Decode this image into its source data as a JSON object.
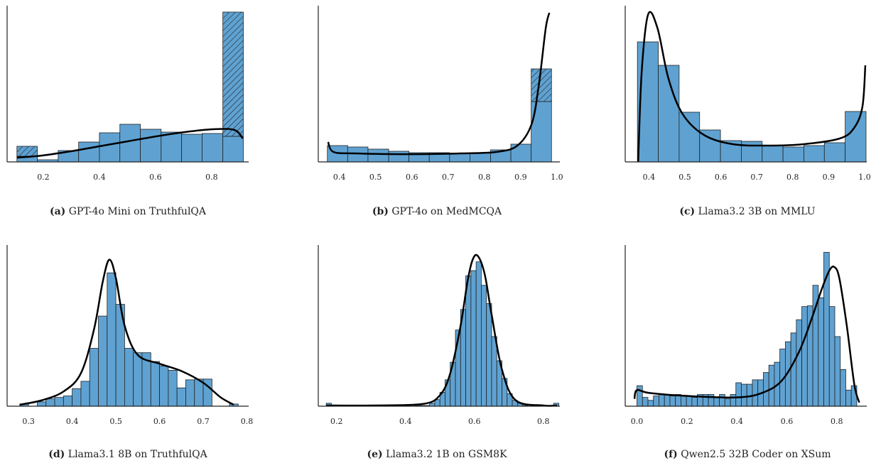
{
  "chart_data": [
    {
      "type": "histogram",
      "label": "(a)",
      "caption": "GPT-4o Mini on TruthfulQA",
      "color": "#5fa2d2",
      "xlim": [
        0.071,
        0.932
      ],
      "xticks": [
        0.2,
        0.4,
        0.6,
        0.8
      ],
      "ylim": [
        0,
        220
      ],
      "bins": [
        0.106,
        0.179,
        0.253,
        0.326,
        0.4,
        0.473,
        0.546,
        0.62,
        0.693,
        0.766,
        0.84,
        0.913
      ],
      "values": [
        8,
        3,
        16,
        28,
        41,
        53,
        46,
        42,
        39,
        40,
        36
      ],
      "extra_values": [
        14,
        0,
        0,
        0,
        0,
        0,
        0,
        0,
        0,
        0,
        175
      ],
      "kde_x": [
        0.106,
        0.197,
        0.299,
        0.4,
        0.501,
        0.603,
        0.704,
        0.805,
        0.881,
        0.911
      ],
      "kde_y": [
        6,
        9,
        15,
        22,
        29,
        36,
        42,
        46,
        45,
        33
      ]
    },
    {
      "type": "histogram",
      "label": "(b)",
      "caption": "GPT-4o on MedMCQA",
      "color": "#5fa2d2",
      "xlim": [
        0.342,
        1.008
      ],
      "xticks": [
        0.4,
        0.5,
        0.6,
        0.7,
        0.8,
        0.9,
        {
          "value": 1,
          "label": "1.0"
        }
      ],
      "ylim": [
        0,
        220
      ],
      "bins": [
        0.367,
        0.423,
        0.479,
        0.536,
        0.592,
        0.648,
        0.704,
        0.76,
        0.817,
        0.873,
        0.929,
        0.985
      ],
      "values": [
        23,
        21,
        18,
        15,
        13,
        13,
        12,
        13,
        17,
        25,
        85
      ],
      "extra_values": [
        0,
        0,
        0,
        0,
        0,
        0,
        0,
        0,
        0,
        0,
        46
      ],
      "kde_x": [
        0.369,
        0.384,
        0.443,
        0.54,
        0.638,
        0.735,
        0.833,
        0.891,
        0.93,
        0.95,
        0.969,
        0.979
      ],
      "kde_y": [
        28,
        14,
        12,
        11,
        11,
        12,
        14,
        23,
        53,
        108,
        188,
        210
      ]
    },
    {
      "type": "histogram",
      "label": "(c)",
      "caption": "Llama3.2 3B on MMLU",
      "color": "#5fa2d2",
      "xlim": [
        0.334,
        1.006
      ],
      "xticks": [
        0.4,
        0.5,
        0.6,
        0.7,
        0.8,
        0.9,
        {
          "value": 1,
          "label": "1.0"
        }
      ],
      "ylim": [
        0,
        220
      ],
      "bins": [
        0.368,
        0.426,
        0.484,
        0.541,
        0.599,
        0.657,
        0.715,
        0.773,
        0.831,
        0.888,
        0.946,
        1.004
      ],
      "values": [
        169,
        136,
        70,
        45,
        30,
        29,
        23,
        21,
        23,
        27,
        71
      ],
      "kde_x": [
        0.37,
        0.38,
        0.398,
        0.424,
        0.454,
        0.493,
        0.553,
        0.633,
        0.732,
        0.831,
        0.931,
        0.971,
        0.994,
        1.002
      ],
      "kde_y": [
        0,
        128,
        208,
        188,
        118,
        68,
        38,
        25,
        23,
        25,
        33,
        48,
        78,
        136
      ]
    },
    {
      "type": "histogram",
      "label": "(d)",
      "caption": "Llama3.1 8B on TruthfulQA",
      "color": "#5fa2d2",
      "xlim": [
        0.251,
        0.804
      ],
      "xticks": [
        0.3,
        0.4,
        0.5,
        0.6,
        0.7,
        0.8
      ],
      "ylim": [
        0,
        220
      ],
      "bins": [
        0.28,
        0.3,
        0.32,
        0.34,
        0.36,
        0.38,
        0.4,
        0.42,
        0.44,
        0.46,
        0.48,
        0.5,
        0.52,
        0.54,
        0.56,
        0.58,
        0.6,
        0.62,
        0.64,
        0.66,
        0.68,
        0.7,
        0.72,
        0.74,
        0.76,
        0.78
      ],
      "values": [
        3,
        0,
        6,
        10,
        12,
        14,
        24,
        34,
        79,
        123,
        182,
        139,
        79,
        73,
        73,
        61,
        55,
        49,
        25,
        36,
        37,
        37,
        0,
        0,
        3
      ],
      "kde_x": [
        0.28,
        0.33,
        0.38,
        0.42,
        0.45,
        0.47,
        0.485,
        0.5,
        0.52,
        0.55,
        0.6,
        0.65,
        0.7,
        0.74,
        0.77
      ],
      "kde_y": [
        2,
        8,
        20,
        45,
        105,
        170,
        200,
        175,
        110,
        70,
        58,
        48,
        32,
        12,
        2
      ]
    },
    {
      "type": "histogram",
      "label": "(e)",
      "caption": "Llama3.2 1B on GSM8K",
      "color": "#5fa2d2",
      "xlim": [
        0.147,
        0.848
      ],
      "xticks": [
        0.2,
        0.4,
        0.6,
        0.8
      ],
      "ylim": [
        0,
        220
      ],
      "bins": [
        0.17,
        0.185,
        0.2,
        0.215,
        0.23,
        0.245,
        0.26,
        0.275,
        0.29,
        0.305,
        0.32,
        0.335,
        0.35,
        0.365,
        0.38,
        0.395,
        0.41,
        0.425,
        0.44,
        0.455,
        0.47,
        0.485,
        0.5,
        0.515,
        0.53,
        0.545,
        0.56,
        0.575,
        0.59,
        0.605,
        0.62,
        0.635,
        0.65,
        0.665,
        0.68,
        0.695,
        0.71,
        0.725,
        0.74,
        0.755,
        0.77,
        0.785,
        0.8,
        0.815,
        0.83,
        0.845
      ],
      "values": [
        4,
        0,
        0,
        0,
        0,
        0,
        0,
        0,
        0,
        0,
        0,
        0,
        1,
        0,
        0,
        1,
        0,
        1,
        1,
        1,
        4,
        9,
        19,
        36,
        60,
        104,
        132,
        178,
        185,
        197,
        165,
        140,
        95,
        62,
        38,
        17,
        8,
        4,
        1,
        0,
        0,
        1,
        0,
        0,
        4
      ],
      "kde_x": [
        0.17,
        0.3,
        0.45,
        0.5,
        0.53,
        0.56,
        0.58,
        0.595,
        0.61,
        0.63,
        0.65,
        0.68,
        0.72,
        0.8,
        0.84
      ],
      "kde_y": [
        1,
        1,
        3,
        15,
        45,
        110,
        170,
        200,
        205,
        180,
        125,
        50,
        8,
        1,
        1
      ]
    },
    {
      "type": "histogram",
      "label": "(f)",
      "caption": "Qwen2.5 32B Coder on XSum",
      "color": "#5fa2d2",
      "xlim": [
        -0.047,
        0.92
      ],
      "xticks": [
        {
          "value": 0,
          "label": "0.0"
        },
        0.2,
        0.4,
        0.6,
        0.8
      ],
      "ylim": [
        0,
        220
      ],
      "bins": [
        0,
        0.022,
        0.044,
        0.066,
        0.088,
        0.11,
        0.132,
        0.154,
        0.176,
        0.198,
        0.22,
        0.242,
        0.264,
        0.286,
        0.308,
        0.33,
        0.352,
        0.374,
        0.396,
        0.418,
        0.44,
        0.462,
        0.484,
        0.506,
        0.528,
        0.55,
        0.572,
        0.594,
        0.616,
        0.638,
        0.66,
        0.682,
        0.704,
        0.726,
        0.748,
        0.77,
        0.792,
        0.814,
        0.836,
        0.858,
        0.88
      ],
      "values": [
        28,
        12,
        8,
        14,
        16,
        16,
        14,
        16,
        14,
        14,
        12,
        16,
        16,
        16,
        12,
        16,
        10,
        16,
        32,
        30,
        30,
        36,
        36,
        46,
        56,
        60,
        78,
        88,
        100,
        118,
        136,
        137,
        165,
        148,
        210,
        136,
        95,
        50,
        22,
        28
      ],
      "kde_x": [
        -0.01,
        0,
        0.05,
        0.2,
        0.4,
        0.5,
        0.58,
        0.65,
        0.7,
        0.74,
        0.77,
        0.79,
        0.81,
        0.84,
        0.87,
        0.89
      ],
      "kde_y": [
        10,
        22,
        18,
        14,
        12,
        18,
        35,
        75,
        120,
        160,
        185,
        190,
        175,
        110,
        30,
        5
      ]
    }
  ]
}
